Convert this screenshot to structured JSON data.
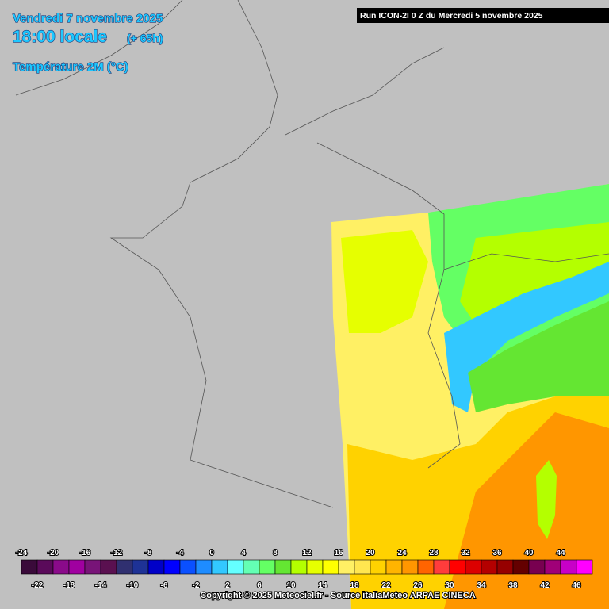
{
  "header": {
    "date": "Vendredi 7 novembre 2025",
    "time": "18:00 locale",
    "lead": "(+ 65h)",
    "variable": "Température 2M (°C)"
  },
  "run": "Run ICON-2I 0 Z du Mercredi 5 novembre 2025",
  "legend": {
    "values": [
      -24,
      -22,
      -20,
      -18,
      -16,
      -14,
      -12,
      -10,
      -8,
      -6,
      -4,
      -2,
      0,
      2,
      4,
      6,
      8,
      10,
      12,
      14,
      16,
      18,
      20,
      22,
      24,
      26,
      28,
      30,
      32,
      34,
      36,
      38,
      40,
      42,
      44,
      46
    ],
    "colors": [
      "#3a0a3a",
      "#5a0a5a",
      "#8a0a8a",
      "#a000a0",
      "#781478",
      "#5a1050",
      "#303070",
      "#1e3296",
      "#0000c8",
      "#0000ff",
      "#0a50ff",
      "#1e8cff",
      "#32c8ff",
      "#64ffff",
      "#64ffb4",
      "#64ff64",
      "#64e632",
      "#b4ff00",
      "#e6ff00",
      "#ffff00",
      "#fff064",
      "#ffe650",
      "#ffd200",
      "#ffb400",
      "#ff9600",
      "#ff6400",
      "#ff3c3c",
      "#ff0000",
      "#dc0000",
      "#b40000",
      "#960000",
      "#640000",
      "#780050",
      "#a00078",
      "#c800c8",
      "#ff00ff"
    ]
  },
  "copyright": "Copyright © 2025 Meteociel.fr - Source italiaMeteo ARPAE CINECA"
}
